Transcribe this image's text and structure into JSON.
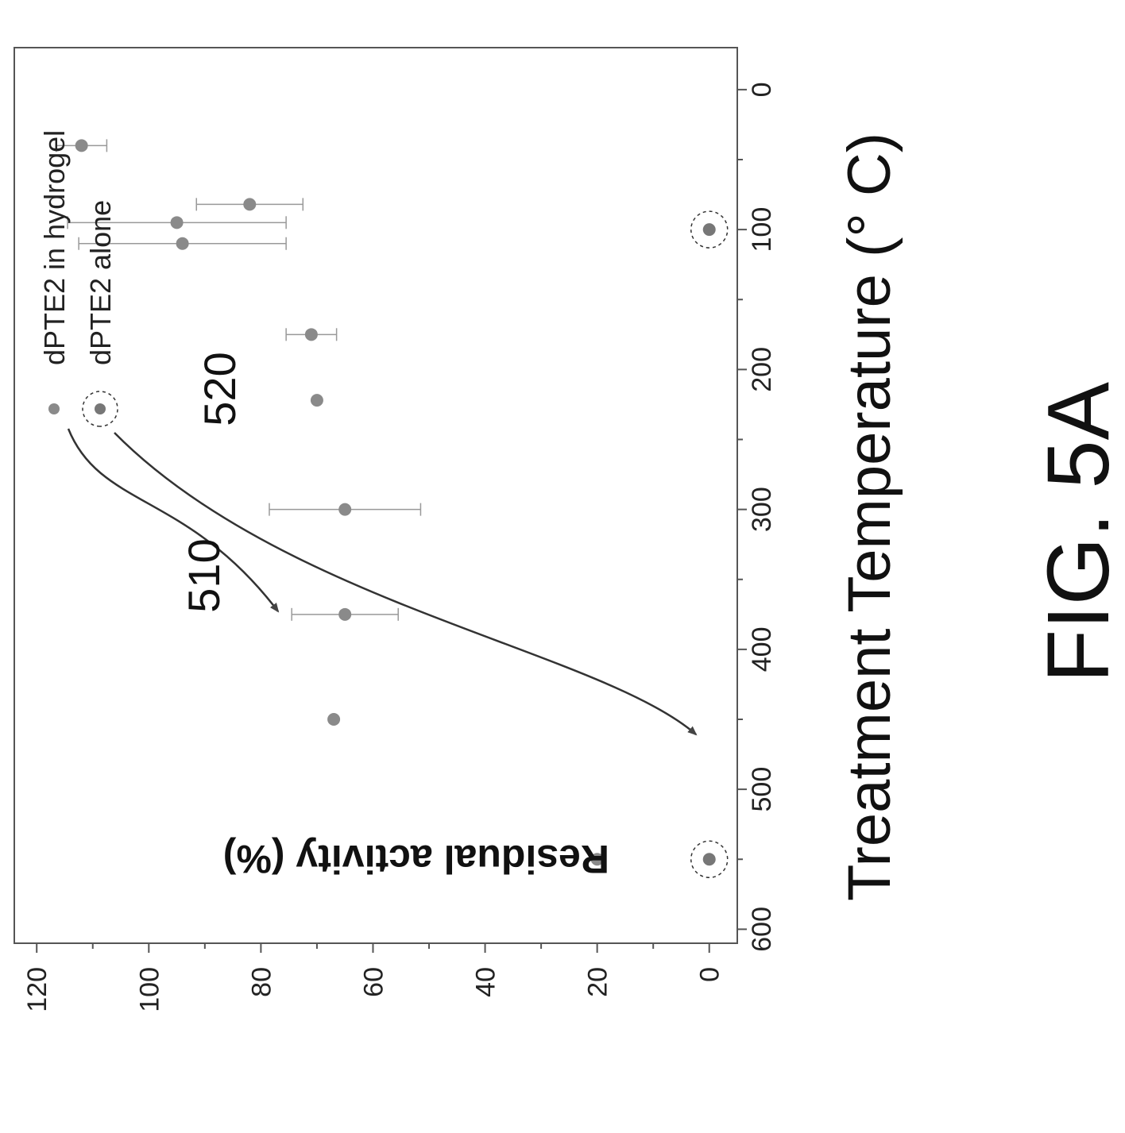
{
  "figure_label": "FIG. 5A",
  "chart_data": {
    "type": "scatter",
    "xlabel": "Treatment Temperature (° C)",
    "ylabel": "Residual activity (%)",
    "xlim": [
      -30,
      610
    ],
    "ylim": [
      -5,
      124
    ],
    "x_ticks": [
      0,
      100,
      200,
      300,
      400,
      500,
      600
    ],
    "y_ticks": [
      0,
      20,
      40,
      60,
      80,
      100,
      120
    ],
    "legend_position": "upper-right",
    "series": [
      {
        "name": "dPTE2 in hydrogel",
        "color": "#8a8a8a",
        "points": [
          {
            "x": 40,
            "y": 112,
            "err": 4.5
          },
          {
            "x": 82,
            "y": 82,
            "err": 9.5
          },
          {
            "x": 95,
            "y": 95,
            "err": 19.5
          },
          {
            "x": 110,
            "y": 94,
            "err": 18.5
          },
          {
            "x": 175,
            "y": 71,
            "err": 4.5
          },
          {
            "x": 222,
            "y": 70,
            "err": 0.5
          },
          {
            "x": 300,
            "y": 65,
            "err": 13.5
          },
          {
            "x": 375,
            "y": 65,
            "err": 9.5
          },
          {
            "x": 450,
            "y": 67,
            "err": 0.5
          },
          {
            "x": 550,
            "y": 20,
            "err": 0.5
          }
        ]
      },
      {
        "name": "dPTE2  alone",
        "color": "#777777",
        "points": [
          {
            "x": 100,
            "y": 0,
            "err": 0.5
          },
          {
            "x": 550,
            "y": 0,
            "err": 0.5
          }
        ]
      }
    ],
    "annotations": [
      {
        "label": "510",
        "note": "arrow from dPTE2 in hydrogel legend to hydrogel points near 200 °C"
      },
      {
        "label": "520",
        "note": "arrow from dPTE2 alone legend to the 0% point at 100 °C"
      }
    ]
  }
}
